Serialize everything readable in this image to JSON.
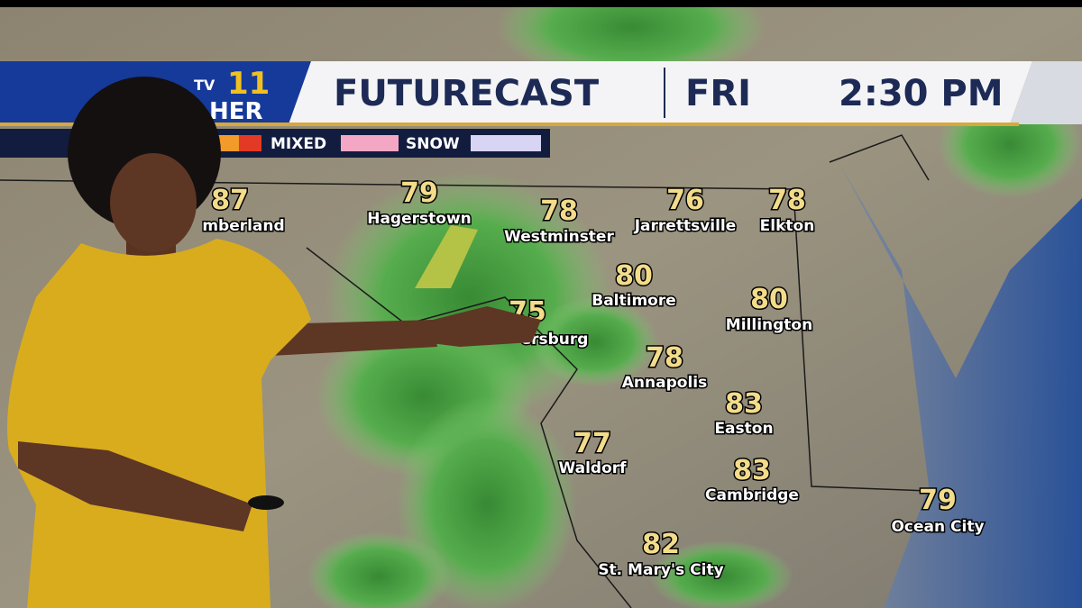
{
  "header": {
    "logo": {
      "station": "TV",
      "channel": "11",
      "suffix": "HER"
    },
    "title": "FUTURECAST",
    "day": "FRI",
    "time": "2:30 PM"
  },
  "legend": {
    "items": [
      "MIXED",
      "SNOW"
    ]
  },
  "cities": [
    {
      "temp": 87,
      "name": "mberland"
    },
    {
      "temp": 79,
      "name": "Hagerstown"
    },
    {
      "temp": 78,
      "name": "Westminster"
    },
    {
      "temp": 76,
      "name": "Jarrettsville"
    },
    {
      "temp": 78,
      "name": "Elkton"
    },
    {
      "temp": 80,
      "name": "Baltimore"
    },
    {
      "temp": 80,
      "name": "Millington"
    },
    {
      "temp": 75,
      "name": "ersburg"
    },
    {
      "temp": 78,
      "name": "Annapolis"
    },
    {
      "temp": 83,
      "name": "Easton"
    },
    {
      "temp": 77,
      "name": "Waldorf"
    },
    {
      "temp": 83,
      "name": "Cambridge"
    },
    {
      "temp": 79,
      "name": "Ocean City"
    },
    {
      "temp": 82,
      "name": "St. Mary's City"
    }
  ]
}
